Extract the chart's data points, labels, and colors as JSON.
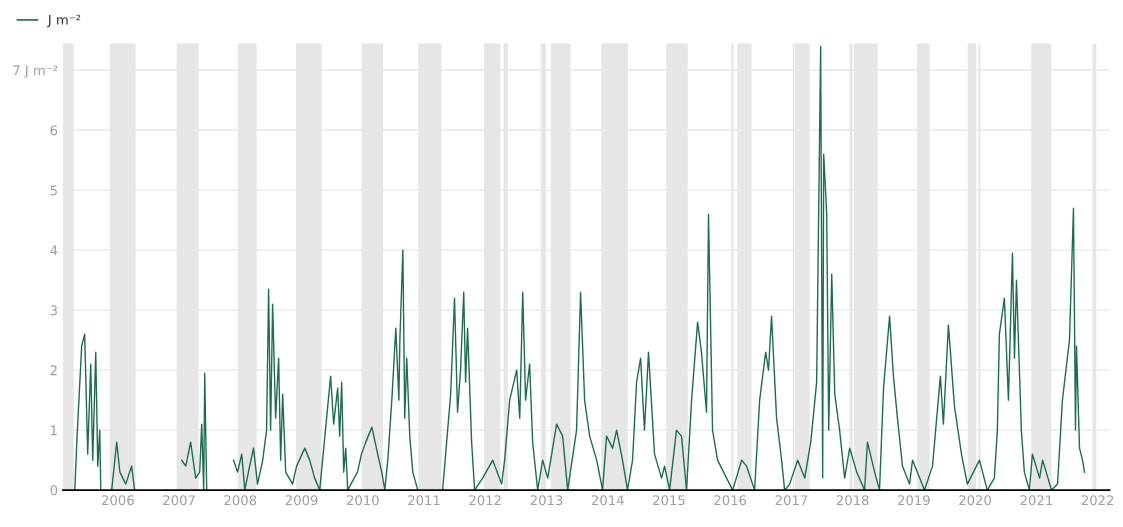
{
  "chart_data": {
    "type": "line",
    "xlim": [
      "2005-02-07",
      "2022-03-13"
    ],
    "ylim": [
      0,
      7.45
    ],
    "yticks": [
      0,
      1,
      2,
      3,
      4,
      5,
      6,
      {
        "value": 7,
        "label": "7 J m⁻²"
      }
    ],
    "xticks": [
      "2006",
      "2007",
      "2008",
      "2009",
      "2010",
      "2011",
      "2012",
      "2013",
      "2014",
      "2015",
      "2016",
      "2017",
      "2018",
      "2019",
      "2020",
      "2021",
      "2022"
    ],
    "grid": "y",
    "legend": "top left",
    "marker": "none",
    "line_style": "solid",
    "bands": [
      {
        "axis": "x",
        "from": "2005-02-07",
        "to": "2005-04-13",
        "color": "#e6e6e6"
      },
      {
        "axis": "x",
        "from": "2005-11-14",
        "to": "2006-04-17",
        "color": "#e6e6e6"
      },
      {
        "axis": "x",
        "from": "2006-12-17",
        "to": "2007-04-27",
        "color": "#e6e6e6"
      },
      {
        "axis": "x",
        "from": "2007-12-17",
        "to": "2008-04-08",
        "color": "#e6e6e6"
      },
      {
        "axis": "x",
        "from": "2008-11-29",
        "to": "2009-05-01",
        "color": "#e6e6e6"
      },
      {
        "axis": "x",
        "from": "2009-12-25",
        "to": "2010-05-01",
        "color": "#e6e6e6"
      },
      {
        "axis": "x",
        "from": "2010-11-28",
        "to": "2011-04-16",
        "color": "#e6e6e6"
      },
      {
        "axis": "x",
        "from": "2011-12-25",
        "to": "2012-04-01",
        "color": "#e6e6e6"
      },
      {
        "axis": "x",
        "from": "2012-04-20",
        "to": "2012-05-15",
        "color": "#e6e6e6"
      },
      {
        "axis": "x",
        "from": "2012-11-28",
        "to": "2012-12-28",
        "color": "#e6e6e6"
      },
      {
        "axis": "x",
        "from": "2013-01-26",
        "to": "2013-05-25",
        "color": "#e6e6e6"
      },
      {
        "axis": "x",
        "from": "2013-11-24",
        "to": "2014-05-01",
        "color": "#e6e6e6"
      },
      {
        "axis": "x",
        "from": "2014-12-16",
        "to": "2015-04-23",
        "color": "#e6e6e6"
      },
      {
        "axis": "x",
        "from": "2016-01-08",
        "to": "2016-01-22",
        "color": "#e6e6e6"
      },
      {
        "axis": "x",
        "from": "2016-02-13",
        "to": "2016-05-08",
        "color": "#e6e6e6"
      },
      {
        "axis": "x",
        "from": "2017-01-08",
        "to": "2017-01-18",
        "color": "#e6e6e6"
      },
      {
        "axis": "x",
        "from": "2017-01-22",
        "to": "2017-04-20",
        "color": "#e6e6e6"
      },
      {
        "axis": "x",
        "from": "2017-12-13",
        "to": "2017-12-31",
        "color": "#e6e6e6"
      },
      {
        "axis": "x",
        "from": "2018-01-08",
        "to": "2018-05-30",
        "color": "#e6e6e6"
      },
      {
        "axis": "x",
        "from": "2019-01-20",
        "to": "2019-04-06",
        "color": "#e6e6e6"
      },
      {
        "axis": "x",
        "from": "2019-11-18",
        "to": "2020-01-08",
        "color": "#e6e6e6"
      },
      {
        "axis": "x",
        "from": "2020-01-22",
        "to": "2020-02-03",
        "color": "#e6e6e6"
      },
      {
        "axis": "x",
        "from": "2020-12-01",
        "to": "2021-04-01",
        "color": "#e6e6e6"
      },
      {
        "axis": "x",
        "from": "2021-12-01",
        "to": "2021-12-24",
        "color": "#e6e6e6"
      }
    ],
    "series": [
      {
        "name": "J m⁻²",
        "color": "#1e6b52",
        "x": [
          "2005-04-19",
          "2005-05-01",
          "2005-05-30",
          "2005-06-17",
          "2005-07-05",
          "2005-07-23",
          "2005-08-04",
          "2005-08-22",
          "2005-09-03",
          "2005-09-15",
          "2005-09-21",
          "2005-10-20",
          "2005-11-25",
          "2005-12-25",
          "2006-01-13",
          "2006-02-17",
          "2006-03-24",
          "2006-04-11",
          "2006-08-15",
          "2007-01-17",
          "2007-02-10",
          "2007-03-11",
          "2007-04-10",
          "2007-05-04",
          "2007-05-16",
          "2007-05-28",
          "2007-06-03",
          "2007-06-15",
          "2007-09-01",
          "2007-11-22",
          "2007-12-16",
          "2008-01-10",
          "2008-01-28",
          "2008-02-26",
          "2008-03-20",
          "2008-04-13",
          "2008-05-14",
          "2008-06-06",
          "2008-06-18",
          "2008-06-30",
          "2008-07-12",
          "2008-07-30",
          "2008-08-17",
          "2008-08-29",
          "2008-09-10",
          "2008-09-28",
          "2008-11-08",
          "2008-12-02",
          "2009-01-20",
          "2009-02-18",
          "2009-03-20",
          "2009-04-19",
          "2009-05-30",
          "2009-06-23",
          "2009-07-11",
          "2009-08-04",
          "2009-08-16",
          "2009-08-28",
          "2009-09-09",
          "2009-09-21",
          "2009-10-03",
          "2009-11-30",
          "2009-12-24",
          "2010-01-19",
          "2010-02-24",
          "2010-03-31",
          "2010-04-24",
          "2010-05-12",
          "2010-05-30",
          "2010-06-23",
          "2010-07-17",
          "2010-08-04",
          "2010-08-10",
          "2010-08-28",
          "2010-09-08",
          "2010-09-20",
          "2010-10-08",
          "2010-10-26",
          "2010-11-25",
          "2011-02-15",
          "2011-04-22",
          "2011-05-16",
          "2011-06-09",
          "2011-07-02",
          "2011-07-20",
          "2011-08-07",
          "2011-08-26",
          "2011-09-06",
          "2011-09-18",
          "2011-10-12",
          "2011-10-30",
          "2011-12-17",
          "2012-02-15",
          "2012-04-08",
          "2012-04-26",
          "2012-05-26",
          "2012-07-07",
          "2012-07-25",
          "2012-08-12",
          "2012-08-29",
          "2012-09-22",
          "2012-10-10",
          "2012-11-09",
          "2012-12-09",
          "2013-01-08",
          "2013-03-02",
          "2013-04-07",
          "2013-05-07",
          "2013-06-29",
          "2013-07-23",
          "2013-08-16",
          "2013-09-15",
          "2013-10-27",
          "2013-12-01",
          "2013-12-25",
          "2014-01-30",
          "2014-02-23",
          "2014-03-30",
          "2014-04-29",
          "2014-05-29",
          "2014-06-22",
          "2014-07-16",
          "2014-08-08",
          "2014-09-01",
          "2014-10-07",
          "2014-11-18",
          "2014-12-06",
          "2015-01-05",
          "2015-02-15",
          "2015-03-17",
          "2015-04-16",
          "2015-05-16",
          "2015-06-21",
          "2015-07-14",
          "2015-08-13",
          "2015-08-25",
          "2015-09-18",
          "2015-10-18",
          "2015-12-11",
          "2016-01-16",
          "2016-03-10",
          "2016-04-08",
          "2016-05-26",
          "2016-06-25",
          "2016-07-31",
          "2016-08-17",
          "2016-09-04",
          "2016-10-04",
          "2016-11-03",
          "2016-11-21",
          "2016-12-21",
          "2017-02-07",
          "2017-03-21",
          "2017-04-26",
          "2017-05-31",
          "2017-06-24",
          "2017-07-06",
          "2017-07-12",
          "2017-07-30",
          "2017-08-11",
          "2017-08-29",
          "2017-09-16",
          "2017-10-15",
          "2017-11-14",
          "2017-12-14",
          "2018-01-25",
          "2018-03-13",
          "2018-03-30",
          "2018-05-12",
          "2018-06-10",
          "2018-07-04",
          "2018-08-09",
          "2018-09-01",
          "2018-09-25",
          "2018-10-25",
          "2018-12-06",
          "2018-12-24",
          "2019-03-05",
          "2019-04-22",
          "2019-06-08",
          "2019-06-26",
          "2019-07-26",
          "2019-08-31",
          "2019-10-12",
          "2019-11-16",
          "2020-01-27",
          "2020-03-14",
          "2020-04-25",
          "2020-05-13",
          "2020-05-25",
          "2020-06-24",
          "2020-07-18",
          "2020-08-11",
          "2020-08-23",
          "2020-09-04",
          "2020-10-03",
          "2020-10-21",
          "2020-11-20",
          "2020-12-08",
          "2021-01-20",
          "2021-02-07",
          "2021-04-01",
          "2021-05-07",
          "2021-06-05",
          "2021-07-17",
          "2021-08-10",
          "2021-08-22",
          "2021-08-28",
          "2021-09-15",
          "2021-10-03",
          "2021-10-15"
        ],
        "values": [
          0,
          0.8,
          2.4,
          2.6,
          0.6,
          2.1,
          0.5,
          2.3,
          0.4,
          1.0,
          0,
          null,
          0,
          0.8,
          0.3,
          0.1,
          0.4,
          0,
          null,
          0.5,
          0.4,
          0.8,
          0.2,
          0.3,
          1.1,
          0,
          1.95,
          0,
          null,
          0.5,
          0.3,
          0.6,
          0,
          0.4,
          0.7,
          0.1,
          0.5,
          1.0,
          3.35,
          1.0,
          3.1,
          1.2,
          2.2,
          0.5,
          1.6,
          0.3,
          0.1,
          0.4,
          0.7,
          0.5,
          0.2,
          0,
          1.2,
          1.9,
          1.1,
          1.7,
          0.9,
          1.8,
          0.3,
          0.7,
          0,
          0.3,
          0.6,
          0.8,
          1.05,
          0.6,
          0.3,
          0,
          0.5,
          1.5,
          2.7,
          1.5,
          2.5,
          4.0,
          1.2,
          2.2,
          0.9,
          0.3,
          0,
          null,
          0,
          0.8,
          1.6,
          3.2,
          1.3,
          2.0,
          3.3,
          1.8,
          2.7,
          0.8,
          0,
          0.2,
          0.5,
          0.1,
          0.5,
          1.5,
          2.0,
          1.2,
          3.3,
          1.5,
          2.1,
          0.8,
          0,
          0.5,
          0.2,
          1.1,
          0.9,
          0,
          1.0,
          3.3,
          1.5,
          0.9,
          0.5,
          0,
          0.9,
          0.7,
          1.0,
          0.5,
          0,
          0.5,
          1.8,
          2.2,
          1.0,
          2.3,
          0.6,
          0.2,
          0.4,
          0,
          1.0,
          0.9,
          0,
          1.5,
          2.8,
          2.3,
          1.3,
          4.6,
          1.0,
          0.5,
          0.2,
          0,
          0.5,
          0.4,
          0,
          1.5,
          2.3,
          2.0,
          2.9,
          1.2,
          0.5,
          0,
          0.1,
          0.5,
          0.2,
          0.8,
          1.8,
          7.4,
          0.2,
          5.6,
          4.6,
          1.0,
          3.6,
          1.6,
          1.0,
          0.2,
          0.7,
          0.3,
          0,
          0.8,
          0.3,
          0,
          1.7,
          2.9,
          1.9,
          1.2,
          0.4,
          0.1,
          0.5,
          0,
          0.4,
          1.9,
          1.1,
          2.75,
          1.4,
          0.6,
          0.1,
          0.5,
          0,
          0.2,
          1.0,
          2.6,
          3.2,
          1.5,
          3.95,
          2.2,
          3.5,
          1.0,
          0.3,
          0,
          0.6,
          0.2,
          0.5,
          0,
          0.1,
          1.5,
          2.5,
          4.7,
          1.0,
          2.4,
          0.7,
          0.5,
          0.3
        ]
      }
    ]
  }
}
